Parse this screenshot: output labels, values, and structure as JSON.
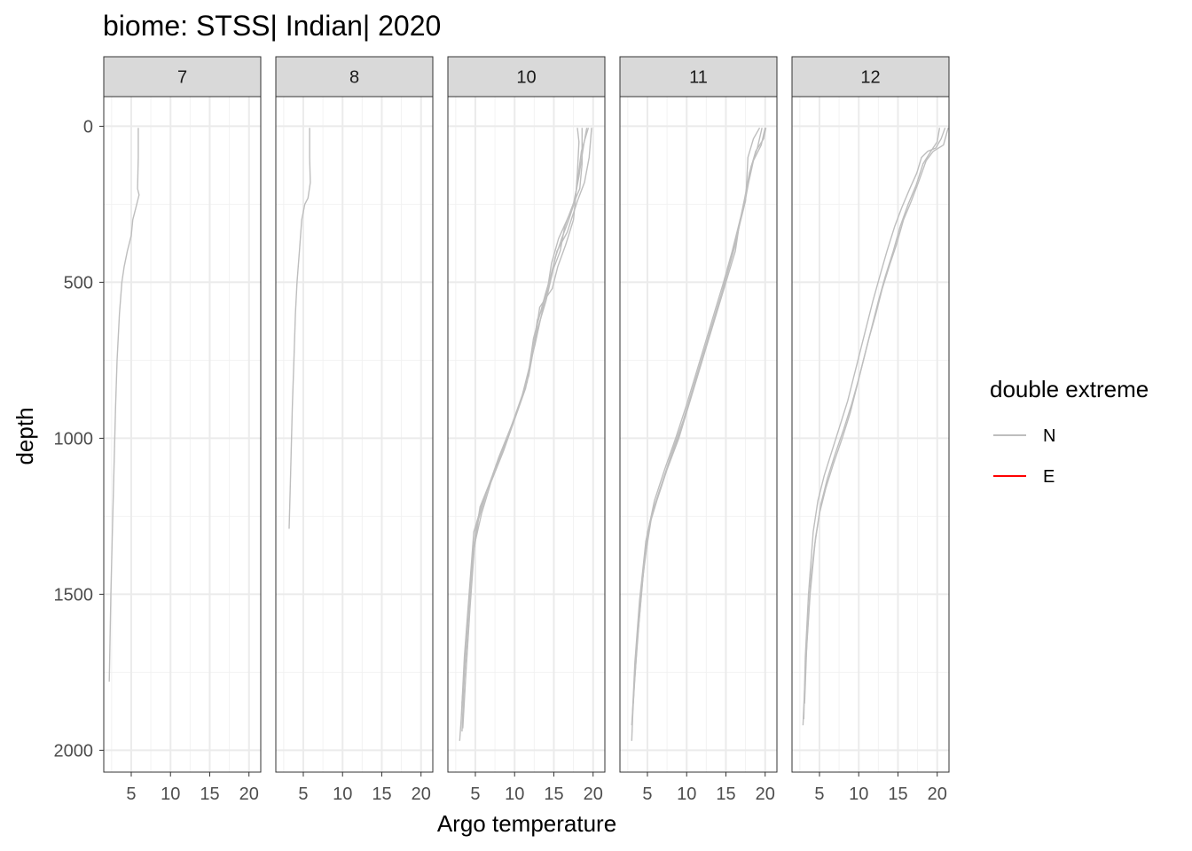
{
  "chart_data": {
    "type": "line",
    "title": "biome: STSS| Indian| 2020",
    "xlabel": "Argo temperature",
    "ylabel": "depth",
    "facets": [
      "7",
      "8",
      "10",
      "11",
      "12"
    ],
    "xlim": [
      1.5,
      21.5
    ],
    "xticks": [
      5,
      10,
      15,
      20
    ],
    "ylim": [
      2070,
      -95
    ],
    "yticks": [
      0,
      500,
      1000,
      1500,
      2000
    ],
    "y_reversed": true,
    "grid": true,
    "legend": {
      "title": "double extreme",
      "placement": "right",
      "entries": [
        {
          "label": "N",
          "color": "#bebebe"
        },
        {
          "label": "E",
          "color": "#ff0000"
        }
      ]
    },
    "series": [
      {
        "facet": "7",
        "group": "N",
        "points": [
          [
            5.9,
            5
          ],
          [
            5.9,
            100
          ],
          [
            5.8,
            200
          ],
          [
            6.0,
            220
          ],
          [
            5.6,
            260
          ],
          [
            5.2,
            300
          ],
          [
            5.0,
            350
          ],
          [
            4.5,
            400
          ],
          [
            4.1,
            450
          ],
          [
            3.8,
            500
          ],
          [
            3.5,
            600
          ],
          [
            3.2,
            750
          ],
          [
            3.0,
            900
          ],
          [
            2.8,
            1100
          ],
          [
            2.6,
            1300
          ],
          [
            2.4,
            1500
          ],
          [
            2.2,
            1780
          ]
        ]
      },
      {
        "facet": "8",
        "group": "N",
        "points": [
          [
            5.8,
            5
          ],
          [
            5.8,
            100
          ],
          [
            5.9,
            180
          ],
          [
            5.6,
            230
          ],
          [
            5.2,
            250
          ],
          [
            4.8,
            300
          ],
          [
            4.5,
            400
          ],
          [
            4.2,
            500
          ],
          [
            4.0,
            600
          ],
          [
            3.8,
            750
          ],
          [
            3.6,
            900
          ],
          [
            3.4,
            1100
          ],
          [
            3.2,
            1290
          ]
        ]
      },
      {
        "facet": "10",
        "group": "N",
        "points": [
          [
            18.0,
            5
          ],
          [
            18.2,
            50
          ],
          [
            18.0,
            150
          ],
          [
            17.8,
            220
          ],
          [
            17.5,
            300
          ],
          [
            16.5,
            380
          ],
          [
            15.5,
            450
          ],
          [
            14.8,
            520
          ],
          [
            13.2,
            580
          ],
          [
            12.5,
            700
          ],
          [
            11.8,
            800
          ],
          [
            10.5,
            900
          ],
          [
            9.0,
            1000
          ],
          [
            7.5,
            1100
          ],
          [
            6.0,
            1200
          ],
          [
            4.8,
            1300
          ],
          [
            4.2,
            1500
          ],
          [
            3.6,
            1700
          ],
          [
            3.2,
            1900
          ],
          [
            3.0,
            1970
          ]
        ]
      },
      {
        "facet": "10",
        "group": "N",
        "points": [
          [
            19.2,
            5
          ],
          [
            18.8,
            60
          ],
          [
            18.2,
            160
          ],
          [
            17.6,
            240
          ],
          [
            16.4,
            320
          ],
          [
            15.8,
            400
          ],
          [
            14.9,
            460
          ],
          [
            14.0,
            560
          ],
          [
            12.8,
            660
          ],
          [
            11.9,
            780
          ],
          [
            11.0,
            860
          ],
          [
            9.6,
            960
          ],
          [
            8.0,
            1060
          ],
          [
            6.6,
            1160
          ],
          [
            5.4,
            1260
          ],
          [
            4.6,
            1400
          ],
          [
            4.0,
            1600
          ],
          [
            3.5,
            1800
          ]
        ]
      },
      {
        "facet": "10",
        "group": "N",
        "points": [
          [
            19.4,
            5
          ],
          [
            18.5,
            80
          ],
          [
            17.9,
            200
          ],
          [
            17.4,
            260
          ],
          [
            15.6,
            360
          ],
          [
            14.7,
            440
          ],
          [
            14.2,
            520
          ],
          [
            13.6,
            580
          ],
          [
            12.9,
            620
          ],
          [
            12.2,
            740
          ],
          [
            11.4,
            840
          ],
          [
            10.0,
            940
          ],
          [
            8.6,
            1040
          ],
          [
            7.0,
            1140
          ],
          [
            5.8,
            1240
          ],
          [
            4.9,
            1340
          ],
          [
            4.3,
            1550
          ],
          [
            3.8,
            1750
          ],
          [
            3.4,
            1930
          ]
        ]
      },
      {
        "facet": "10",
        "group": "N",
        "points": [
          [
            18.6,
            5
          ],
          [
            18.6,
            120
          ],
          [
            18.3,
            200
          ],
          [
            17.8,
            230
          ],
          [
            16.9,
            300
          ],
          [
            16.0,
            360
          ],
          [
            15.2,
            420
          ],
          [
            14.5,
            500
          ],
          [
            13.8,
            560
          ],
          [
            12.6,
            700
          ],
          [
            12.0,
            760
          ],
          [
            10.8,
            880
          ],
          [
            9.4,
            980
          ],
          [
            7.8,
            1080
          ],
          [
            6.3,
            1180
          ],
          [
            5.1,
            1280
          ],
          [
            4.4,
            1450
          ],
          [
            3.9,
            1650
          ],
          [
            3.3,
            1850
          ]
        ]
      },
      {
        "facet": "10",
        "group": "N",
        "points": [
          [
            19.8,
            5
          ],
          [
            19.5,
            100
          ],
          [
            18.9,
            180
          ],
          [
            18.0,
            240
          ],
          [
            16.7,
            340
          ],
          [
            15.4,
            400
          ],
          [
            14.6,
            480
          ],
          [
            13.9,
            540
          ],
          [
            12.4,
            680
          ],
          [
            11.6,
            820
          ],
          [
            10.2,
            920
          ],
          [
            8.8,
            1020
          ],
          [
            7.2,
            1120
          ],
          [
            5.6,
            1220
          ],
          [
            4.7,
            1360
          ],
          [
            4.1,
            1560
          ],
          [
            3.6,
            1760
          ],
          [
            3.3,
            1940
          ]
        ]
      },
      {
        "facet": "11",
        "group": "N",
        "points": [
          [
            19.3,
            5
          ],
          [
            18.5,
            40
          ],
          [
            17.8,
            100
          ],
          [
            17.6,
            200
          ],
          [
            17.5,
            240
          ],
          [
            16.8,
            300
          ],
          [
            16.2,
            400
          ],
          [
            15.0,
            500
          ],
          [
            13.8,
            600
          ],
          [
            12.6,
            700
          ],
          [
            11.4,
            800
          ],
          [
            10.2,
            900
          ],
          [
            9.0,
            1000
          ],
          [
            7.5,
            1100
          ],
          [
            6.2,
            1200
          ],
          [
            5.0,
            1300
          ],
          [
            4.2,
            1500
          ],
          [
            3.5,
            1700
          ],
          [
            3.1,
            1900
          ],
          [
            3.0,
            1970
          ]
        ]
      },
      {
        "facet": "11",
        "group": "N",
        "points": [
          [
            20.0,
            5
          ],
          [
            19.5,
            60
          ],
          [
            18.5,
            110
          ],
          [
            17.9,
            180
          ],
          [
            17.3,
            260
          ],
          [
            16.5,
            340
          ],
          [
            15.5,
            440
          ],
          [
            14.4,
            540
          ],
          [
            13.2,
            640
          ],
          [
            12.0,
            740
          ],
          [
            10.8,
            840
          ],
          [
            9.6,
            940
          ],
          [
            8.2,
            1040
          ],
          [
            6.9,
            1140
          ],
          [
            5.6,
            1240
          ],
          [
            4.6,
            1400
          ],
          [
            3.9,
            1600
          ],
          [
            3.3,
            1800
          ],
          [
            3.0,
            1920
          ]
        ]
      },
      {
        "facet": "11",
        "group": "N",
        "points": [
          [
            20.1,
            5
          ],
          [
            19.8,
            40
          ],
          [
            18.8,
            80
          ],
          [
            18.0,
            150
          ],
          [
            17.4,
            230
          ],
          [
            16.9,
            290
          ],
          [
            15.8,
            400
          ],
          [
            14.7,
            500
          ],
          [
            13.5,
            600
          ],
          [
            12.3,
            700
          ],
          [
            11.1,
            800
          ],
          [
            9.9,
            900
          ],
          [
            8.6,
            1000
          ],
          [
            7.2,
            1100
          ],
          [
            5.9,
            1200
          ],
          [
            4.8,
            1330
          ],
          [
            4.0,
            1520
          ],
          [
            3.4,
            1720
          ],
          [
            3.1,
            1880
          ]
        ]
      },
      {
        "facet": "11",
        "group": "N",
        "points": [
          [
            19.6,
            5
          ],
          [
            19.0,
            70
          ],
          [
            18.2,
            130
          ],
          [
            17.7,
            200
          ],
          [
            17.0,
            280
          ],
          [
            16.3,
            370
          ],
          [
            15.2,
            470
          ],
          [
            14.1,
            570
          ],
          [
            12.9,
            670
          ],
          [
            11.7,
            770
          ],
          [
            10.5,
            870
          ],
          [
            9.3,
            970
          ],
          [
            7.9,
            1070
          ],
          [
            6.5,
            1170
          ],
          [
            5.3,
            1270
          ],
          [
            4.4,
            1450
          ],
          [
            3.7,
            1650
          ],
          [
            3.2,
            1850
          ]
        ]
      },
      {
        "facet": "12",
        "group": "N",
        "points": [
          [
            21.0,
            5
          ],
          [
            20.5,
            40
          ],
          [
            19.8,
            70
          ],
          [
            18.8,
            80
          ],
          [
            18.0,
            100
          ],
          [
            17.4,
            150
          ],
          [
            16.5,
            200
          ],
          [
            15.5,
            260
          ],
          [
            14.6,
            320
          ],
          [
            13.6,
            400
          ],
          [
            12.8,
            470
          ],
          [
            11.8,
            560
          ],
          [
            11.0,
            640
          ],
          [
            10.2,
            720
          ],
          [
            9.4,
            800
          ],
          [
            8.6,
            880
          ],
          [
            7.6,
            960
          ],
          [
            6.6,
            1040
          ],
          [
            5.6,
            1120
          ],
          [
            4.8,
            1200
          ],
          [
            4.2,
            1300
          ],
          [
            3.6,
            1500
          ],
          [
            3.2,
            1700
          ],
          [
            3.0,
            1900
          ]
        ]
      },
      {
        "facet": "12",
        "group": "N",
        "points": [
          [
            21.4,
            5
          ],
          [
            20.8,
            60
          ],
          [
            19.5,
            80
          ],
          [
            18.6,
            110
          ],
          [
            17.6,
            180
          ],
          [
            16.7,
            240
          ],
          [
            15.7,
            300
          ],
          [
            14.8,
            380
          ],
          [
            14.0,
            440
          ],
          [
            13.0,
            520
          ],
          [
            12.2,
            600
          ],
          [
            11.3,
            680
          ],
          [
            10.5,
            760
          ],
          [
            9.7,
            840
          ],
          [
            8.9,
            920
          ],
          [
            7.9,
            1000
          ],
          [
            6.8,
            1080
          ],
          [
            5.8,
            1160
          ],
          [
            5.0,
            1240
          ],
          [
            4.4,
            1340
          ],
          [
            3.9,
            1450
          ],
          [
            3.4,
            1650
          ],
          [
            3.1,
            1850
          ]
        ]
      },
      {
        "facet": "12",
        "group": "N",
        "points": [
          [
            20.3,
            5
          ],
          [
            20.0,
            50
          ],
          [
            19.2,
            80
          ],
          [
            18.2,
            120
          ],
          [
            17.3,
            190
          ],
          [
            16.3,
            250
          ],
          [
            15.3,
            320
          ],
          [
            14.4,
            400
          ],
          [
            13.4,
            480
          ],
          [
            12.5,
            560
          ],
          [
            11.6,
            650
          ],
          [
            10.8,
            730
          ],
          [
            10.0,
            810
          ],
          [
            9.1,
            890
          ],
          [
            8.1,
            970
          ],
          [
            7.0,
            1050
          ],
          [
            6.0,
            1130
          ],
          [
            5.2,
            1210
          ],
          [
            4.5,
            1320
          ],
          [
            3.8,
            1500
          ],
          [
            3.3,
            1700
          ],
          [
            3.0,
            1860
          ],
          [
            2.9,
            1920
          ]
        ]
      }
    ]
  }
}
